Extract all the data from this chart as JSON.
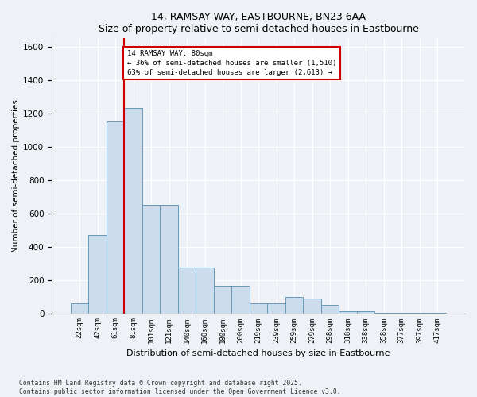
{
  "title1": "14, RAMSAY WAY, EASTBOURNE, BN23 6AA",
  "title2": "Size of property relative to semi-detached houses in Eastbourne",
  "xlabel": "Distribution of semi-detached houses by size in Eastbourne",
  "ylabel": "Number of semi-detached properties",
  "categories": [
    "22sqm",
    "42sqm",
    "61sqm",
    "81sqm",
    "101sqm",
    "121sqm",
    "140sqm",
    "160sqm",
    "180sqm",
    "200sqm",
    "219sqm",
    "239sqm",
    "259sqm",
    "279sqm",
    "298sqm",
    "318sqm",
    "338sqm",
    "358sqm",
    "377sqm",
    "397sqm",
    "417sqm"
  ],
  "values": [
    60,
    470,
    1150,
    1230,
    650,
    650,
    275,
    275,
    165,
    165,
    60,
    60,
    100,
    90,
    50,
    10,
    10,
    5,
    5,
    5,
    5
  ],
  "bar_color": "#ccdcec",
  "bar_edge_color": "#6699bb",
  "property_line_bin": 3,
  "property_sqm": 80,
  "annotation_text": "14 RAMSAY WAY: 80sqm\n← 36% of semi-detached houses are smaller (1,510)\n63% of semi-detached houses are larger (2,613) →",
  "annotation_box_color": "#ffffff",
  "annotation_box_edge": "#cc0000",
  "vline_color": "#cc0000",
  "ylim": [
    0,
    1650
  ],
  "yticks": [
    0,
    200,
    400,
    600,
    800,
    1000,
    1200,
    1400,
    1600
  ],
  "footer": "Contains HM Land Registry data © Crown copyright and database right 2025.\nContains public sector information licensed under the Open Government Licence v3.0.",
  "bg_color": "#eef2f7",
  "plot_bg_color": "#eef2f7",
  "grid_color": "#ffffff"
}
